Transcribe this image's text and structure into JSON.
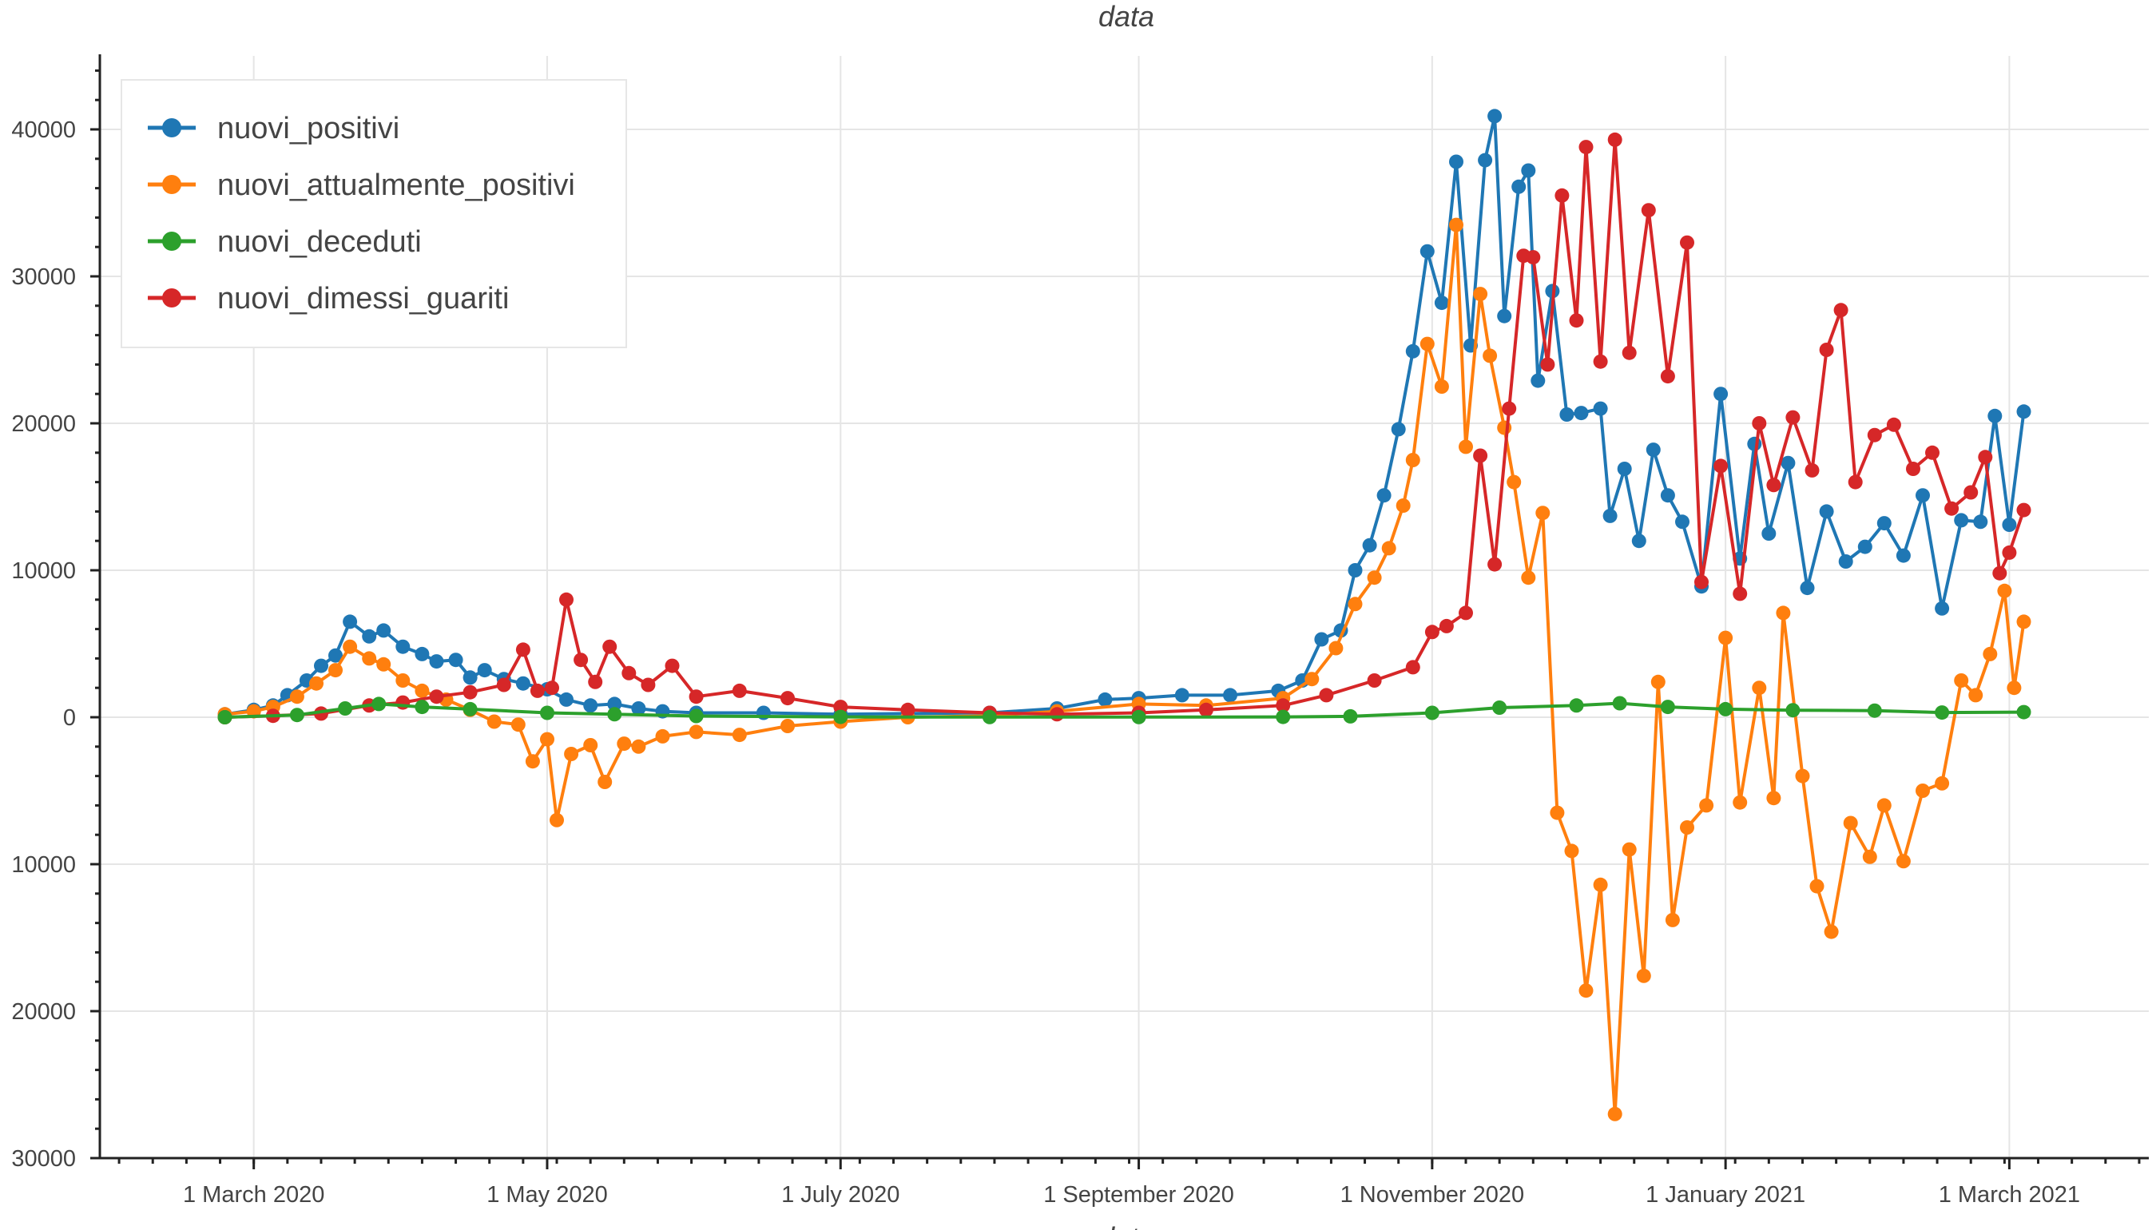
{
  "chart_data": {
    "type": "line",
    "title": "data",
    "xlabel": "data",
    "ylabel": "",
    "x_range": [
      "2020-01-29",
      "2021-03-30"
    ],
    "ylim": [
      -30000,
      45000
    ],
    "grid": true,
    "legend_position": "top-left",
    "x_ticks": [
      {
        "date": "2020-03-01",
        "label": "1 March 2020"
      },
      {
        "date": "2020-05-01",
        "label": "1 May 2020"
      },
      {
        "date": "2020-07-01",
        "label": "1 July 2020"
      },
      {
        "date": "2020-09-01",
        "label": "1 September 2020"
      },
      {
        "date": "2020-11-01",
        "label": "1 November 2020"
      },
      {
        "date": "2021-01-01",
        "label": "1 January 2021"
      },
      {
        "date": "2021-03-01",
        "label": "1 March 2021"
      }
    ],
    "y_ticks": [
      {
        "value": 40000,
        "label": "40000"
      },
      {
        "value": 30000,
        "label": "30000"
      },
      {
        "value": 20000,
        "label": "20000"
      },
      {
        "value": 10000,
        "label": "10000"
      },
      {
        "value": 0,
        "label": "0"
      },
      {
        "value": -10000,
        "label": "10000"
      },
      {
        "value": -20000,
        "label": "20000"
      },
      {
        "value": -30000,
        "label": "30000"
      }
    ],
    "series": [
      {
        "name": "nuovi_positivi",
        "color": "#1f77b4",
        "points": [
          [
            "2020-02-24",
            200
          ],
          [
            "2020-03-01",
            500
          ],
          [
            "2020-03-05",
            800
          ],
          [
            "2020-03-08",
            1500
          ],
          [
            "2020-03-12",
            2500
          ],
          [
            "2020-03-15",
            3500
          ],
          [
            "2020-03-18",
            4200
          ],
          [
            "2020-03-21",
            6500
          ],
          [
            "2020-03-25",
            5500
          ],
          [
            "2020-03-28",
            5900
          ],
          [
            "2020-04-01",
            4800
          ],
          [
            "2020-04-05",
            4300
          ],
          [
            "2020-04-08",
            3800
          ],
          [
            "2020-04-12",
            3900
          ],
          [
            "2020-04-15",
            2700
          ],
          [
            "2020-04-18",
            3200
          ],
          [
            "2020-04-22",
            2600
          ],
          [
            "2020-04-26",
            2300
          ],
          [
            "2020-05-01",
            1900
          ],
          [
            "2020-05-05",
            1200
          ],
          [
            "2020-05-10",
            800
          ],
          [
            "2020-05-15",
            900
          ],
          [
            "2020-05-20",
            600
          ],
          [
            "2020-05-25",
            400
          ],
          [
            "2020-06-01",
            300
          ],
          [
            "2020-06-15",
            300
          ],
          [
            "2020-07-01",
            200
          ],
          [
            "2020-07-15",
            250
          ],
          [
            "2020-08-01",
            300
          ],
          [
            "2020-08-15",
            600
          ],
          [
            "2020-08-25",
            1200
          ],
          [
            "2020-09-01",
            1300
          ],
          [
            "2020-09-10",
            1500
          ],
          [
            "2020-09-20",
            1500
          ],
          [
            "2020-09-30",
            1800
          ],
          [
            "2020-10-05",
            2500
          ],
          [
            "2020-10-09",
            5300
          ],
          [
            "2020-10-13",
            5900
          ],
          [
            "2020-10-16",
            10000
          ],
          [
            "2020-10-19",
            11700
          ],
          [
            "2020-10-22",
            15100
          ],
          [
            "2020-10-25",
            19600
          ],
          [
            "2020-10-28",
            24900
          ],
          [
            "2020-10-31",
            31700
          ],
          [
            "2020-11-03",
            28200
          ],
          [
            "2020-11-06",
            37800
          ],
          [
            "2020-11-09",
            25300
          ],
          [
            "2020-11-12",
            37900
          ],
          [
            "2020-11-14",
            40900
          ],
          [
            "2020-11-16",
            27300
          ],
          [
            "2020-11-19",
            36100
          ],
          [
            "2020-11-21",
            37200
          ],
          [
            "2020-11-23",
            22900
          ],
          [
            "2020-11-26",
            29000
          ],
          [
            "2020-11-29",
            20600
          ],
          [
            "2020-12-02",
            20700
          ],
          [
            "2020-12-06",
            21000
          ],
          [
            "2020-12-08",
            13700
          ],
          [
            "2020-12-11",
            16900
          ],
          [
            "2020-12-14",
            12000
          ],
          [
            "2020-12-17",
            18200
          ],
          [
            "2020-12-20",
            15100
          ],
          [
            "2020-12-23",
            13300
          ],
          [
            "2020-12-27",
            8900
          ],
          [
            "2020-12-31",
            22000
          ],
          [
            "2021-01-04",
            10800
          ],
          [
            "2021-01-07",
            18600
          ],
          [
            "2021-01-10",
            12500
          ],
          [
            "2021-01-14",
            17300
          ],
          [
            "2021-01-18",
            8800
          ],
          [
            "2021-01-22",
            14000
          ],
          [
            "2021-01-26",
            10600
          ],
          [
            "2021-01-30",
            11600
          ],
          [
            "2021-02-03",
            13200
          ],
          [
            "2021-02-07",
            11000
          ],
          [
            "2021-02-11",
            15100
          ],
          [
            "2021-02-15",
            7400
          ],
          [
            "2021-02-19",
            13400
          ],
          [
            "2021-02-23",
            13300
          ],
          [
            "2021-02-26",
            20500
          ],
          [
            "2021-03-01",
            13100
          ],
          [
            "2021-03-04",
            20800
          ]
        ]
      },
      {
        "name": "nuovi_attualmente_positivi",
        "color": "#ff7f0e",
        "points": [
          [
            "2020-02-24",
            200
          ],
          [
            "2020-03-01",
            400
          ],
          [
            "2020-03-05",
            700
          ],
          [
            "2020-03-10",
            1400
          ],
          [
            "2020-03-14",
            2300
          ],
          [
            "2020-03-18",
            3200
          ],
          [
            "2020-03-21",
            4800
          ],
          [
            "2020-03-25",
            4000
          ],
          [
            "2020-03-28",
            3600
          ],
          [
            "2020-04-01",
            2500
          ],
          [
            "2020-04-05",
            1800
          ],
          [
            "2020-04-10",
            1200
          ],
          [
            "2020-04-15",
            500
          ],
          [
            "2020-04-20",
            -300
          ],
          [
            "2020-04-25",
            -500
          ],
          [
            "2020-04-28",
            -3000
          ],
          [
            "2020-05-01",
            -1500
          ],
          [
            "2020-05-03",
            -7000
          ],
          [
            "2020-05-06",
            -2500
          ],
          [
            "2020-05-10",
            -1900
          ],
          [
            "2020-05-13",
            -4400
          ],
          [
            "2020-05-17",
            -1800
          ],
          [
            "2020-05-20",
            -2000
          ],
          [
            "2020-05-25",
            -1300
          ],
          [
            "2020-06-01",
            -1000
          ],
          [
            "2020-06-10",
            -1200
          ],
          [
            "2020-06-20",
            -600
          ],
          [
            "2020-07-01",
            -300
          ],
          [
            "2020-07-15",
            0
          ],
          [
            "2020-08-01",
            100
          ],
          [
            "2020-08-15",
            400
          ],
          [
            "2020-09-01",
            900
          ],
          [
            "2020-09-15",
            800
          ],
          [
            "2020-10-01",
            1300
          ],
          [
            "2020-10-07",
            2600
          ],
          [
            "2020-10-12",
            4700
          ],
          [
            "2020-10-16",
            7700
          ],
          [
            "2020-10-20",
            9500
          ],
          [
            "2020-10-23",
            11500
          ],
          [
            "2020-10-26",
            14400
          ],
          [
            "2020-10-28",
            17500
          ],
          [
            "2020-10-31",
            25400
          ],
          [
            "2020-11-03",
            22500
          ],
          [
            "2020-11-06",
            33500
          ],
          [
            "2020-11-08",
            18400
          ],
          [
            "2020-11-11",
            28800
          ],
          [
            "2020-11-13",
            24600
          ],
          [
            "2020-11-16",
            19700
          ],
          [
            "2020-11-18",
            16000
          ],
          [
            "2020-11-21",
            9500
          ],
          [
            "2020-11-24",
            13900
          ],
          [
            "2020-11-27",
            -6500
          ],
          [
            "2020-11-30",
            -9100
          ],
          [
            "2020-12-03",
            -18600
          ],
          [
            "2020-12-06",
            -11400
          ],
          [
            "2020-12-09",
            -27000
          ],
          [
            "2020-12-12",
            -9000
          ],
          [
            "2020-12-15",
            -17600
          ],
          [
            "2020-12-18",
            2400
          ],
          [
            "2020-12-21",
            -13800
          ],
          [
            "2020-12-24",
            -7500
          ],
          [
            "2020-12-28",
            -6000
          ],
          [
            "2021-01-01",
            5400
          ],
          [
            "2021-01-04",
            -5800
          ],
          [
            "2021-01-08",
            2000
          ],
          [
            "2021-01-11",
            -5500
          ],
          [
            "2021-01-13",
            7100
          ],
          [
            "2021-01-17",
            -4000
          ],
          [
            "2021-01-20",
            -11500
          ],
          [
            "2021-01-23",
            -14600
          ],
          [
            "2021-01-27",
            -7200
          ],
          [
            "2021-01-31",
            -9500
          ],
          [
            "2021-02-03",
            -6000
          ],
          [
            "2021-02-07",
            -9800
          ],
          [
            "2021-02-11",
            -5000
          ],
          [
            "2021-02-15",
            -4500
          ],
          [
            "2021-02-19",
            2500
          ],
          [
            "2021-02-22",
            1500
          ],
          [
            "2021-02-25",
            4300
          ],
          [
            "2021-02-28",
            8600
          ],
          [
            "2021-03-02",
            2000
          ],
          [
            "2021-03-04",
            6500
          ]
        ]
      },
      {
        "name": "nuovi_deceduti",
        "color": "#2ca02c",
        "points": [
          [
            "2020-02-24",
            0
          ],
          [
            "2020-03-10",
            150
          ],
          [
            "2020-03-20",
            600
          ],
          [
            "2020-03-27",
            900
          ],
          [
            "2020-04-05",
            700
          ],
          [
            "2020-04-15",
            550
          ],
          [
            "2020-05-01",
            300
          ],
          [
            "2020-05-15",
            200
          ],
          [
            "2020-06-01",
            80
          ],
          [
            "2020-07-01",
            20
          ],
          [
            "2020-08-01",
            10
          ],
          [
            "2020-09-01",
            10
          ],
          [
            "2020-10-01",
            20
          ],
          [
            "2020-10-15",
            60
          ],
          [
            "2020-11-01",
            300
          ],
          [
            "2020-11-15",
            650
          ],
          [
            "2020-12-01",
            800
          ],
          [
            "2020-12-10",
            950
          ],
          [
            "2020-12-20",
            700
          ],
          [
            "2021-01-01",
            550
          ],
          [
            "2021-01-15",
            480
          ],
          [
            "2021-02-01",
            450
          ],
          [
            "2021-02-15",
            320
          ],
          [
            "2021-03-04",
            350
          ]
        ]
      },
      {
        "name": "nuovi_dimessi_guariti",
        "color": "#d62728",
        "points": [
          [
            "2020-02-24",
            0
          ],
          [
            "2020-03-05",
            100
          ],
          [
            "2020-03-15",
            250
          ],
          [
            "2020-03-25",
            800
          ],
          [
            "2020-04-01",
            1000
          ],
          [
            "2020-04-08",
            1400
          ],
          [
            "2020-04-15",
            1700
          ],
          [
            "2020-04-22",
            2200
          ],
          [
            "2020-04-26",
            4600
          ],
          [
            "2020-04-29",
            1800
          ],
          [
            "2020-05-02",
            2000
          ],
          [
            "2020-05-05",
            8000
          ],
          [
            "2020-05-08",
            3900
          ],
          [
            "2020-05-11",
            2400
          ],
          [
            "2020-05-14",
            4800
          ],
          [
            "2020-05-18",
            3000
          ],
          [
            "2020-05-22",
            2200
          ],
          [
            "2020-05-27",
            3500
          ],
          [
            "2020-06-01",
            1400
          ],
          [
            "2020-06-10",
            1800
          ],
          [
            "2020-06-20",
            1300
          ],
          [
            "2020-07-01",
            700
          ],
          [
            "2020-07-15",
            500
          ],
          [
            "2020-08-01",
            300
          ],
          [
            "2020-08-15",
            200
          ],
          [
            "2020-09-01",
            300
          ],
          [
            "2020-09-15",
            500
          ],
          [
            "2020-10-01",
            800
          ],
          [
            "2020-10-10",
            1500
          ],
          [
            "2020-10-20",
            2500
          ],
          [
            "2020-10-28",
            3400
          ],
          [
            "2020-11-01",
            5800
          ],
          [
            "2020-11-04",
            6200
          ],
          [
            "2020-11-08",
            7100
          ],
          [
            "2020-11-11",
            17800
          ],
          [
            "2020-11-14",
            10400
          ],
          [
            "2020-11-17",
            21000
          ],
          [
            "2020-11-20",
            31400
          ],
          [
            "2020-11-22",
            31300
          ],
          [
            "2020-11-25",
            24000
          ],
          [
            "2020-11-28",
            35500
          ],
          [
            "2020-12-01",
            27000
          ],
          [
            "2020-12-03",
            38800
          ],
          [
            "2020-12-06",
            24200
          ],
          [
            "2020-12-09",
            39300
          ],
          [
            "2020-12-12",
            24800
          ],
          [
            "2020-12-16",
            34500
          ],
          [
            "2020-12-20",
            23200
          ],
          [
            "2020-12-24",
            32300
          ],
          [
            "2020-12-27",
            9200
          ],
          [
            "2020-12-31",
            17100
          ],
          [
            "2021-01-04",
            8400
          ],
          [
            "2021-01-08",
            20000
          ],
          [
            "2021-01-11",
            15800
          ],
          [
            "2021-01-15",
            20400
          ],
          [
            "2021-01-19",
            16800
          ],
          [
            "2021-01-22",
            25000
          ],
          [
            "2021-01-25",
            27700
          ],
          [
            "2021-01-28",
            16000
          ],
          [
            "2021-02-01",
            19200
          ],
          [
            "2021-02-05",
            19900
          ],
          [
            "2021-02-09",
            16900
          ],
          [
            "2021-02-13",
            18000
          ],
          [
            "2021-02-17",
            14200
          ],
          [
            "2021-02-21",
            15300
          ],
          [
            "2021-02-24",
            17700
          ],
          [
            "2021-02-27",
            9800
          ],
          [
            "2021-03-01",
            11200
          ],
          [
            "2021-03-04",
            14100
          ]
        ]
      }
    ]
  }
}
